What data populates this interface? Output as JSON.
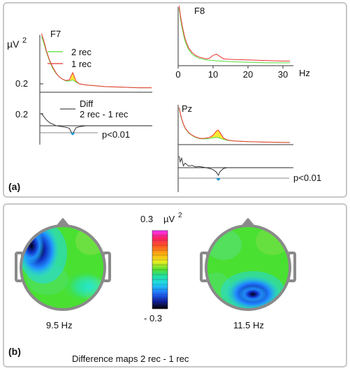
{
  "panel_a": {
    "label": "(a)",
    "ylabel": "µV",
    "ylabel_exp": "2",
    "f7": {
      "label": "F7",
      "tick": "0.2",
      "diff_tick": "0.2",
      "sig": "p<0.01"
    },
    "f8": {
      "label": "F8",
      "xlabel": "Hz",
      "xticks": [
        "0",
        "10",
        "20",
        "30"
      ]
    },
    "pz": {
      "label": "Pz",
      "sig": "p<0.01"
    },
    "legend": {
      "rec2": "2 rec",
      "rec1": "1 rec",
      "diff_line1": "Diff",
      "diff_line2": "2 rec - 1 rec"
    }
  },
  "panel_b": {
    "label": "(b)",
    "caption": "Difference maps 2 rec - 1 rec",
    "colorbar_max": "0.3",
    "colorbar_unit": "µV",
    "colorbar_unit_exp": "2",
    "colorbar_min": "- 0.3",
    "map1_label": "9.5 Hz",
    "map2_label": "11.5 Hz"
  },
  "colors": {
    "rec2": "#55dd33",
    "rec1": "#ee3333",
    "diff": "#222222",
    "fill": "#f6e83a",
    "sig": "#1b9ad6",
    "panel_border": "#c8c8c8",
    "head_outline": "#8a8a8a"
  },
  "chart_data": [
    {
      "type": "line",
      "title": "F7",
      "xlim": [
        0,
        34
      ],
      "series": [
        {
          "name": "2 rec",
          "x": [
            0.5,
            1,
            1.5,
            2,
            3,
            4,
            5,
            6,
            7,
            8,
            9,
            9.5,
            10,
            10.5,
            11,
            12,
            13,
            14,
            16,
            18,
            20,
            25,
            30,
            34
          ],
          "y": [
            1.0,
            0.92,
            0.82,
            0.72,
            0.55,
            0.42,
            0.33,
            0.27,
            0.23,
            0.2,
            0.2,
            0.21,
            0.22,
            0.2,
            0.18,
            0.15,
            0.14,
            0.13,
            0.12,
            0.11,
            0.1,
            0.09,
            0.08,
            0.08
          ]
        },
        {
          "name": "1 rec",
          "x": [
            0.5,
            1,
            1.5,
            2,
            3,
            4,
            5,
            6,
            7,
            8,
            9,
            9.5,
            10,
            10.5,
            11,
            12,
            13,
            14,
            16,
            18,
            20,
            25,
            30,
            34
          ],
          "y": [
            1.05,
            0.96,
            0.86,
            0.74,
            0.57,
            0.44,
            0.34,
            0.27,
            0.23,
            0.21,
            0.22,
            0.29,
            0.35,
            0.28,
            0.2,
            0.15,
            0.14,
            0.13,
            0.12,
            0.11,
            0.1,
            0.09,
            0.08,
            0.08
          ]
        },
        {
          "name": "Diff 2 rec - 1 rec",
          "x": [
            0.5,
            1,
            2,
            3,
            4,
            5,
            6,
            7,
            8,
            9,
            9.5,
            10,
            10.5,
            11,
            12,
            13,
            14,
            16,
            18,
            20,
            25,
            30,
            34
          ],
          "y": [
            0.25,
            0.2,
            0.12,
            0.06,
            0.03,
            0.0,
            -0.01,
            -0.02,
            -0.03,
            -0.05,
            -0.12,
            -0.16,
            -0.1,
            -0.04,
            -0.02,
            -0.01,
            0.0,
            0.0,
            0.0,
            0.0,
            0.0,
            0.0,
            0.0
          ]
        }
      ]
    },
    {
      "type": "line",
      "title": "F8",
      "xlabel": "Hz",
      "xlim": [
        0,
        33
      ],
      "series": [
        {
          "name": "2 rec",
          "x": [
            0.3,
            0.6,
            1,
            1.5,
            2,
            3,
            4,
            5,
            6,
            8,
            10,
            12,
            15,
            20,
            25,
            30,
            32
          ],
          "y": [
            1.0,
            0.85,
            0.7,
            0.55,
            0.42,
            0.28,
            0.2,
            0.16,
            0.13,
            0.1,
            0.09,
            0.08,
            0.07,
            0.06,
            0.05,
            0.05,
            0.05
          ]
        },
        {
          "name": "1 rec",
          "x": [
            0.3,
            0.6,
            1,
            1.5,
            2,
            3,
            4,
            5,
            6,
            8,
            9,
            10,
            11,
            12,
            13,
            15,
            20,
            25,
            30,
            32
          ],
          "y": [
            1.05,
            0.9,
            0.75,
            0.6,
            0.47,
            0.31,
            0.23,
            0.18,
            0.15,
            0.12,
            0.13,
            0.18,
            0.2,
            0.16,
            0.12,
            0.11,
            0.1,
            0.09,
            0.08,
            0.08
          ]
        }
      ]
    },
    {
      "type": "line",
      "title": "Pz",
      "xlim": [
        0,
        33
      ],
      "series": [
        {
          "name": "2 rec",
          "x": [
            0.3,
            0.6,
            1,
            1.5,
            2,
            3,
            4,
            5,
            6,
            7,
            8,
            9,
            10,
            11,
            12,
            13,
            14,
            16,
            20,
            25,
            30,
            32
          ],
          "y": [
            1.0,
            0.85,
            0.7,
            0.56,
            0.45,
            0.32,
            0.25,
            0.2,
            0.17,
            0.16,
            0.16,
            0.17,
            0.19,
            0.2,
            0.18,
            0.14,
            0.12,
            0.1,
            0.08,
            0.07,
            0.06,
            0.06
          ]
        },
        {
          "name": "1 rec",
          "x": [
            0.3,
            0.6,
            1,
            1.5,
            2,
            3,
            4,
            5,
            6,
            7,
            8,
            9,
            10,
            11,
            11.5,
            12,
            13,
            14,
            16,
            20,
            25,
            30,
            32
          ],
          "y": [
            1.02,
            0.87,
            0.72,
            0.57,
            0.46,
            0.33,
            0.26,
            0.21,
            0.18,
            0.17,
            0.18,
            0.2,
            0.26,
            0.38,
            0.4,
            0.33,
            0.18,
            0.13,
            0.1,
            0.08,
            0.07,
            0.06,
            0.06
          ]
        },
        {
          "name": "Diff 2 rec - 1 rec",
          "x": [
            0.3,
            0.6,
            1,
            1.5,
            2,
            3,
            4,
            5,
            6,
            8,
            9,
            10,
            11,
            11.5,
            12,
            13,
            14,
            16,
            20,
            30,
            32
          ],
          "y": [
            0.3,
            0.15,
            0.25,
            0.05,
            0.12,
            0.04,
            0.06,
            0.02,
            0.03,
            0.0,
            -0.02,
            -0.05,
            -0.12,
            -0.2,
            -0.1,
            -0.02,
            0.0,
            0.0,
            0.0,
            0.0,
            0.0
          ]
        }
      ]
    }
  ]
}
